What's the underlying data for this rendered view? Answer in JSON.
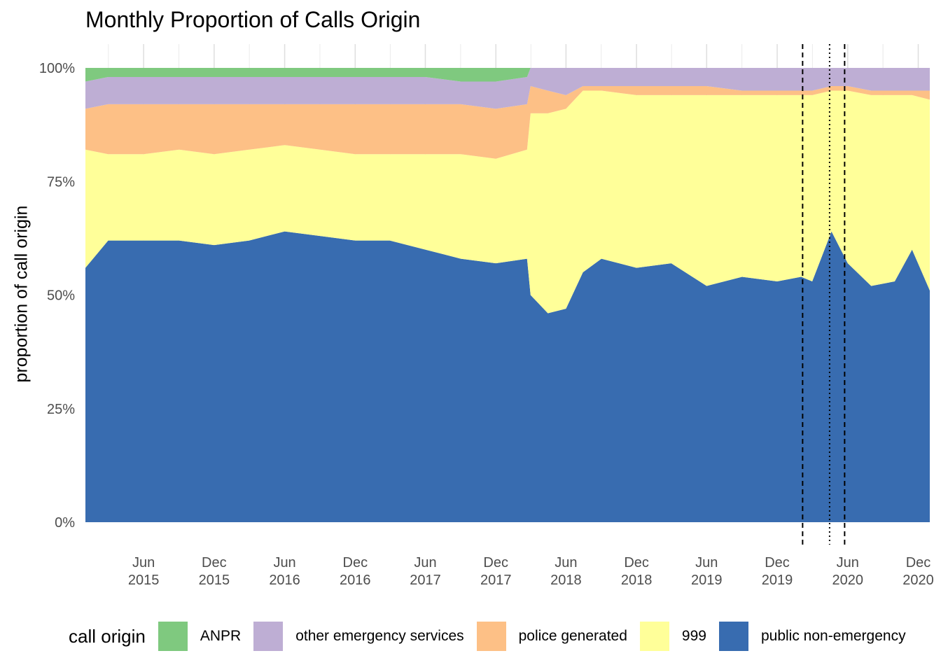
{
  "chart_data": {
    "type": "area",
    "stacked": "fill",
    "title": "Monthly Proportion of Calls Origin",
    "xlabel": "",
    "ylabel": "proportion of call origin",
    "ylim": [
      0,
      1
    ],
    "y_ticks": [
      {
        "value": 0,
        "label": "0%"
      },
      {
        "value": 0.25,
        "label": "25%"
      },
      {
        "value": 0.5,
        "label": "50%"
      },
      {
        "value": 0.75,
        "label": "75%"
      },
      {
        "value": 1,
        "label": "100%"
      }
    ],
    "x_range": [
      "2015-01-01",
      "2020-12-31"
    ],
    "x_ticks": [
      {
        "date": "2015-06-01",
        "line1": "Jun",
        "line2": "2015"
      },
      {
        "date": "2015-12-01",
        "line1": "Dec",
        "line2": "2015"
      },
      {
        "date": "2016-06-01",
        "line1": "Jun",
        "line2": "2016"
      },
      {
        "date": "2016-12-01",
        "line1": "Dec",
        "line2": "2016"
      },
      {
        "date": "2017-06-01",
        "line1": "Jun",
        "line2": "2017"
      },
      {
        "date": "2017-12-01",
        "line1": "Dec",
        "line2": "2017"
      },
      {
        "date": "2018-06-01",
        "line1": "Jun",
        "line2": "2018"
      },
      {
        "date": "2018-12-01",
        "line1": "Dec",
        "line2": "2018"
      },
      {
        "date": "2019-06-01",
        "line1": "Jun",
        "line2": "2019"
      },
      {
        "date": "2019-12-01",
        "line1": "Dec",
        "line2": "2019"
      },
      {
        "date": "2020-06-01",
        "line1": "Jun",
        "line2": "2020"
      },
      {
        "date": "2020-12-01",
        "line1": "Dec",
        "line2": "2020"
      }
    ],
    "vlines": [
      {
        "date": "2020-02-05",
        "style": "dashed"
      },
      {
        "date": "2020-04-15",
        "style": "dotted"
      },
      {
        "date": "2020-05-24",
        "style": "dashed"
      }
    ],
    "grid": true,
    "legend": {
      "title": "call origin",
      "position": "bottom"
    },
    "breakpoints": [
      {
        "date": "2015-01-01",
        "public non-emergency": 0.56,
        "999": 0.82,
        "police generated": 0.91,
        "other emergency services": 0.97
      },
      {
        "date": "2015-03-01",
        "public non-emergency": 0.62,
        "999": 0.81,
        "police generated": 0.92,
        "other emergency services": 0.98
      },
      {
        "date": "2015-06-01",
        "public non-emergency": 0.62,
        "999": 0.81,
        "police generated": 0.92,
        "other emergency services": 0.98
      },
      {
        "date": "2015-09-01",
        "public non-emergency": 0.62,
        "999": 0.82,
        "police generated": 0.92,
        "other emergency services": 0.98
      },
      {
        "date": "2015-12-01",
        "public non-emergency": 0.61,
        "999": 0.81,
        "police generated": 0.92,
        "other emergency services": 0.98
      },
      {
        "date": "2016-03-01",
        "public non-emergency": 0.62,
        "999": 0.82,
        "police generated": 0.92,
        "other emergency services": 0.98
      },
      {
        "date": "2016-06-01",
        "public non-emergency": 0.64,
        "999": 0.83,
        "police generated": 0.92,
        "other emergency services": 0.98
      },
      {
        "date": "2016-09-01",
        "public non-emergency": 0.63,
        "999": 0.82,
        "police generated": 0.92,
        "other emergency services": 0.98
      },
      {
        "date": "2016-12-01",
        "public non-emergency": 0.62,
        "999": 0.81,
        "police generated": 0.92,
        "other emergency services": 0.98
      },
      {
        "date": "2017-03-01",
        "public non-emergency": 0.62,
        "999": 0.81,
        "police generated": 0.92,
        "other emergency services": 0.98
      },
      {
        "date": "2017-06-01",
        "public non-emergency": 0.6,
        "999": 0.81,
        "police generated": 0.92,
        "other emergency services": 0.98
      },
      {
        "date": "2017-09-01",
        "public non-emergency": 0.58,
        "999": 0.81,
        "police generated": 0.92,
        "other emergency services": 0.97
      },
      {
        "date": "2017-12-01",
        "public non-emergency": 0.57,
        "999": 0.8,
        "police generated": 0.91,
        "other emergency services": 0.97
      },
      {
        "date": "2018-02-20",
        "public non-emergency": 0.58,
        "999": 0.82,
        "police generated": 0.92,
        "other emergency services": 0.98
      },
      {
        "date": "2018-03-01",
        "public non-emergency": 0.5,
        "999": 0.9,
        "police generated": 0.96,
        "other emergency services": 1.0
      },
      {
        "date": "2018-04-15",
        "public non-emergency": 0.46,
        "999": 0.9,
        "police generated": 0.95,
        "other emergency services": 1.0
      },
      {
        "date": "2018-06-01",
        "public non-emergency": 0.47,
        "999": 0.91,
        "police generated": 0.94,
        "other emergency services": 1.0
      },
      {
        "date": "2018-07-15",
        "public non-emergency": 0.55,
        "999": 0.95,
        "police generated": 0.96,
        "other emergency services": 1.0
      },
      {
        "date": "2018-09-01",
        "public non-emergency": 0.58,
        "999": 0.95,
        "police generated": 0.96,
        "other emergency services": 1.0
      },
      {
        "date": "2018-12-01",
        "public non-emergency": 0.56,
        "999": 0.94,
        "police generated": 0.96,
        "other emergency services": 1.0
      },
      {
        "date": "2019-03-01",
        "public non-emergency": 0.57,
        "999": 0.94,
        "police generated": 0.96,
        "other emergency services": 1.0
      },
      {
        "date": "2019-06-01",
        "public non-emergency": 0.52,
        "999": 0.94,
        "police generated": 0.96,
        "other emergency services": 1.0
      },
      {
        "date": "2019-09-01",
        "public non-emergency": 0.54,
        "999": 0.94,
        "police generated": 0.95,
        "other emergency services": 1.0
      },
      {
        "date": "2019-12-01",
        "public non-emergency": 0.53,
        "999": 0.94,
        "police generated": 0.95,
        "other emergency services": 1.0
      },
      {
        "date": "2020-02-01",
        "public non-emergency": 0.54,
        "999": 0.94,
        "police generated": 0.95,
        "other emergency services": 1.0
      },
      {
        "date": "2020-03-01",
        "public non-emergency": 0.53,
        "999": 0.94,
        "police generated": 0.95,
        "other emergency services": 1.0
      },
      {
        "date": "2020-04-20",
        "public non-emergency": 0.64,
        "999": 0.95,
        "police generated": 0.96,
        "other emergency services": 1.0
      },
      {
        "date": "2020-06-01",
        "public non-emergency": 0.57,
        "999": 0.95,
        "police generated": 0.96,
        "other emergency services": 1.0
      },
      {
        "date": "2020-08-01",
        "public non-emergency": 0.52,
        "999": 0.94,
        "police generated": 0.95,
        "other emergency services": 1.0
      },
      {
        "date": "2020-10-01",
        "public non-emergency": 0.53,
        "999": 0.94,
        "police generated": 0.95,
        "other emergency services": 1.0
      },
      {
        "date": "2020-11-15",
        "public non-emergency": 0.6,
        "999": 0.94,
        "police generated": 0.95,
        "other emergency services": 1.0
      },
      {
        "date": "2020-12-31",
        "public non-emergency": 0.51,
        "999": 0.93,
        "police generated": 0.95,
        "other emergency services": 1.0
      }
    ],
    "series": [
      {
        "name": "public non-emergency",
        "color": "#386cb0"
      },
      {
        "name": "999",
        "color": "#ffff99"
      },
      {
        "name": "police generated",
        "color": "#fdc086"
      },
      {
        "name": "other emergency services",
        "color": "#beaed4"
      },
      {
        "name": "ANPR",
        "color": "#7fc97f"
      }
    ],
    "legend_order": [
      "ANPR",
      "other emergency services",
      "police generated",
      "999",
      "public non-emergency"
    ]
  }
}
